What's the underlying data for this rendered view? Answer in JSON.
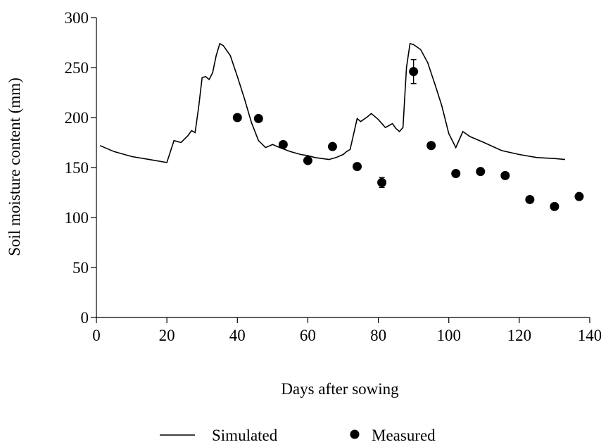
{
  "chart_data": {
    "type": "line",
    "title": "",
    "xlabel": "Days after sowing",
    "ylabel": "Soil moisture content (mm)",
    "xlim": [
      0,
      140
    ],
    "ylim": [
      0,
      300
    ],
    "xticks": [
      0,
      20,
      40,
      60,
      80,
      100,
      120,
      140
    ],
    "yticks": [
      0,
      50,
      100,
      150,
      200,
      250,
      300
    ],
    "grid": false,
    "legend_position": "bottom",
    "series": [
      {
        "name": "Simulated",
        "style": "line",
        "color": "#000000",
        "x": [
          1,
          5,
          10,
          15,
          20,
          22,
          24,
          26,
          27,
          28,
          29,
          30,
          31,
          32,
          33,
          34,
          35,
          36,
          38,
          40,
          42,
          44,
          46,
          48,
          50,
          52,
          55,
          58,
          60,
          62,
          64,
          66,
          68,
          70,
          71,
          72,
          74,
          75,
          77,
          78,
          80,
          82,
          84,
          85,
          86,
          87,
          88,
          89,
          90,
          92,
          94,
          96,
          98,
          100,
          102,
          104,
          106,
          110,
          115,
          120,
          125,
          130,
          133
        ],
        "y": [
          172,
          166,
          161,
          158,
          155,
          177,
          175,
          182,
          187,
          185,
          210,
          240,
          241,
          238,
          245,
          262,
          274,
          272,
          262,
          241,
          219,
          195,
          177,
          170,
          173,
          170,
          166,
          163,
          162,
          160,
          159,
          158,
          160,
          163,
          166,
          168,
          199,
          196,
          201,
          204,
          198,
          190,
          194,
          189,
          186,
          190,
          250,
          274,
          273,
          268,
          255,
          234,
          212,
          184,
          170,
          186,
          181,
          175,
          167,
          163,
          160,
          159,
          158
        ]
      },
      {
        "name": "Measured",
        "style": "marker",
        "color": "#000000",
        "x": [
          40,
          46,
          53,
          60,
          67,
          74,
          81,
          90,
          95,
          102,
          109,
          116,
          123,
          130,
          137
        ],
        "y": [
          200,
          199,
          173,
          157,
          171,
          151,
          135,
          246,
          172,
          144,
          146,
          142,
          118,
          111,
          121
        ],
        "error": [
          0,
          0,
          0,
          0,
          0,
          0,
          5,
          12,
          0,
          0,
          0,
          0,
          0,
          0,
          0
        ]
      }
    ]
  }
}
